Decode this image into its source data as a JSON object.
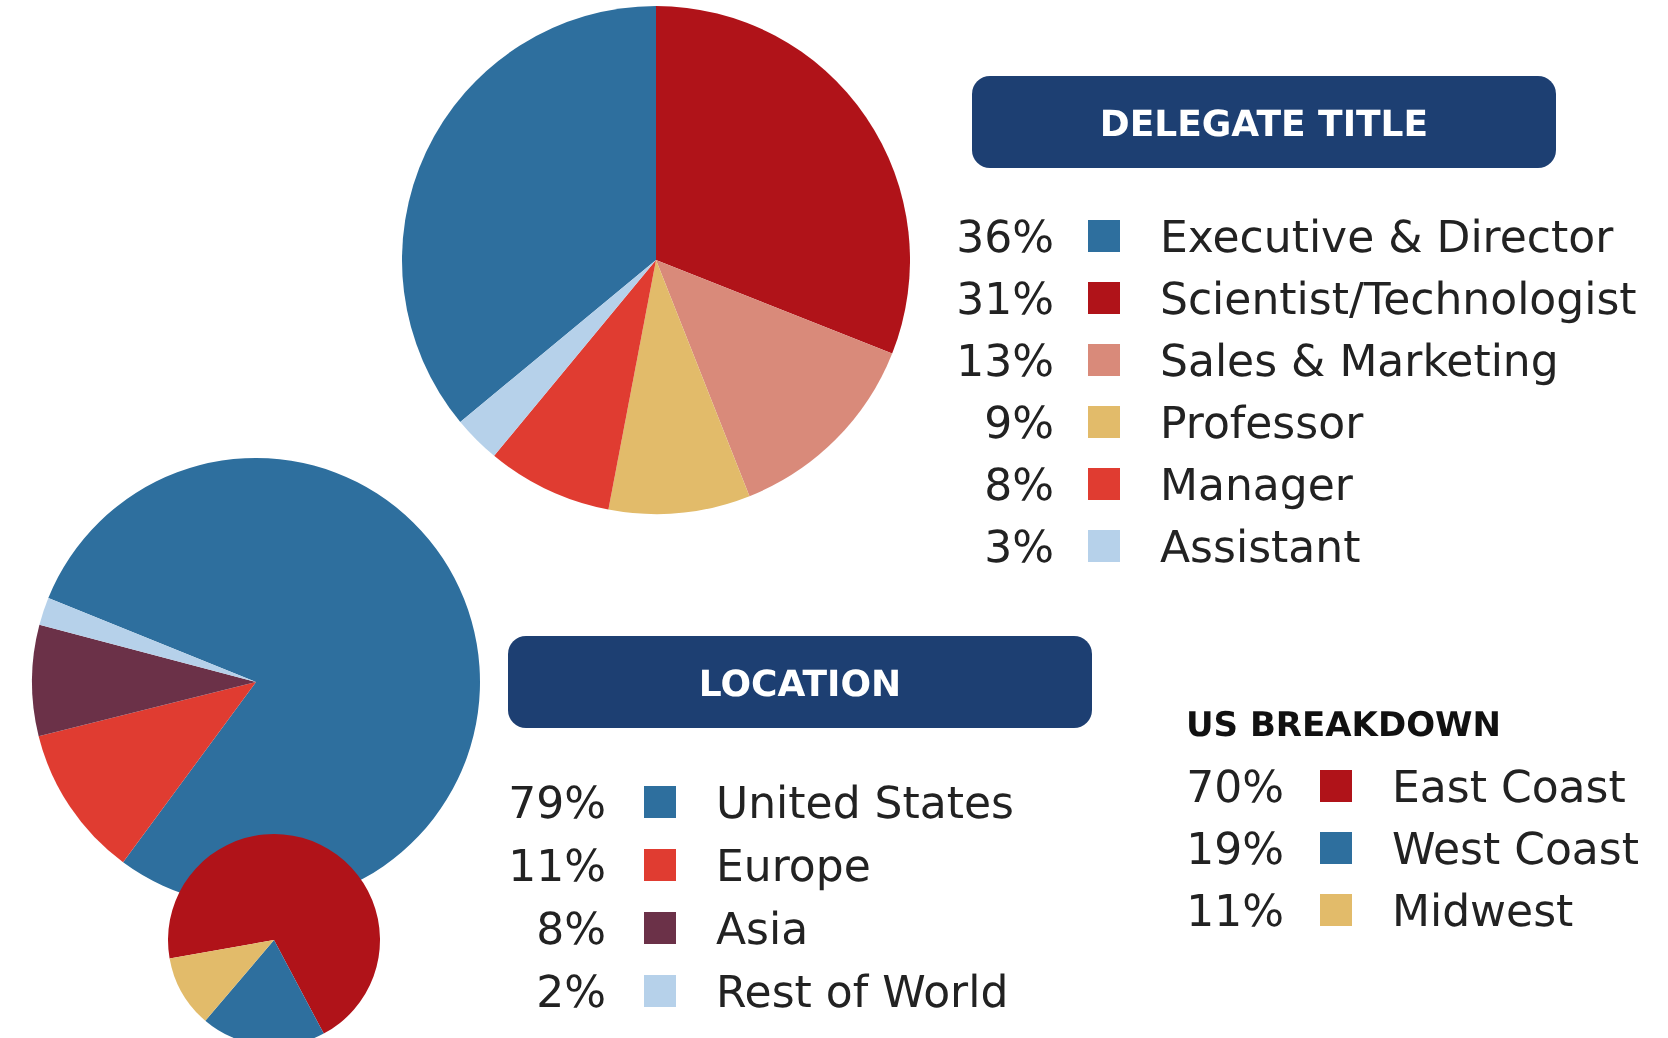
{
  "chart_data": [
    {
      "type": "pie",
      "title": "DELEGATE TITLE",
      "categories": [
        "Executive & Director",
        "Scientist/Technologist",
        "Sales & Marketing",
        "Professor",
        "Manager",
        "Assistant"
      ],
      "values": [
        36,
        31,
        13,
        9,
        8,
        3
      ],
      "value_labels": [
        "36%",
        "31%",
        "13%",
        "9%",
        "8%",
        "3%"
      ],
      "colors": [
        "#2e6f9e",
        "#b01319",
        "#d98a7a",
        "#e2bb6a",
        "#e03c31",
        "#b6d1ea"
      ],
      "legend": "right"
    },
    {
      "type": "pie",
      "title": "LOCATION",
      "categories": [
        "United States",
        "Europe",
        "Asia",
        "Rest of World"
      ],
      "values": [
        79,
        11,
        8,
        2
      ],
      "value_labels": [
        "79%",
        "11%",
        "8%",
        "2%"
      ],
      "colors": [
        "#2e6f9e",
        "#e03c31",
        "#6b3148",
        "#b6d1ea"
      ],
      "legend": "right"
    },
    {
      "type": "pie",
      "title": "US BREAKDOWN",
      "categories": [
        "East Coast",
        "West Coast",
        "Midwest"
      ],
      "values": [
        70,
        19,
        11
      ],
      "value_labels": [
        "70%",
        "19%",
        "11%"
      ],
      "colors": [
        "#b01319",
        "#2e6f9e",
        "#e2bb6a"
      ],
      "legend": "right"
    }
  ]
}
